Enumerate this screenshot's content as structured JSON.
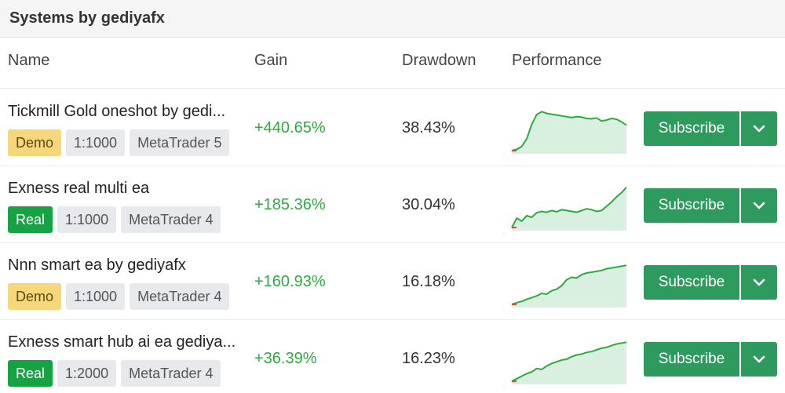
{
  "header": {
    "title": "Systems by gediyafx"
  },
  "columns": {
    "name": "Name",
    "gain": "Gain",
    "drawdown": "Drawdown",
    "performance": "Performance"
  },
  "colors": {
    "gain_green": "#2faa3f",
    "button_green": "#2e9a5e",
    "demo_tag": "#f6d77a",
    "real_tag": "#17a243",
    "spark_line": "#2eaa3e",
    "spark_fill": "#d9efe0"
  },
  "rows": [
    {
      "name": "Tickmill Gold oneshot by gedi...",
      "tags": [
        "Demo",
        "1:1000",
        "MetaTrader 5"
      ],
      "gain": "+440.65%",
      "drawdown": "38.43%",
      "subscribe_label": "Subscribe",
      "dropdown_icon": "chevron-down-icon",
      "sparkline": [
        0,
        3,
        10,
        28,
        62,
        85,
        92,
        88,
        86,
        84,
        82,
        80,
        78,
        80,
        79,
        76,
        75,
        77,
        70,
        72,
        76,
        74,
        68,
        60
      ]
    },
    {
      "name": "Exness real multi ea",
      "tags": [
        "Real",
        "1:1000",
        "MetaTrader 4"
      ],
      "gain": "+185.36%",
      "drawdown": "30.04%",
      "subscribe_label": "Subscribe",
      "dropdown_icon": "chevron-down-icon",
      "sparkline": [
        0,
        22,
        15,
        28,
        24,
        35,
        38,
        36,
        40,
        37,
        42,
        40,
        38,
        36,
        40,
        44,
        42,
        38,
        40,
        50,
        60,
        72,
        82,
        95
      ]
    },
    {
      "name": "Nnn smart ea by gediyafx",
      "tags": [
        "Demo",
        "1:1000",
        "MetaTrader 4"
      ],
      "gain": "+160.93%",
      "drawdown": "16.18%",
      "subscribe_label": "Subscribe",
      "dropdown_icon": "chevron-down-icon",
      "sparkline": [
        0,
        4,
        7,
        12,
        16,
        20,
        26,
        24,
        32,
        36,
        44,
        58,
        64,
        62,
        70,
        74,
        76,
        78,
        80,
        84,
        86,
        88,
        90,
        92
      ]
    },
    {
      "name": "Exness smart hub ai ea gediya...",
      "tags": [
        "Real",
        "1:2000",
        "MetaTrader 4"
      ],
      "gain": "+36.39%",
      "drawdown": "16.23%",
      "subscribe_label": "Subscribe",
      "dropdown_icon": "chevron-down-icon",
      "sparkline": [
        0,
        6,
        12,
        18,
        22,
        30,
        28,
        36,
        42,
        46,
        50,
        52,
        58,
        62,
        64,
        68,
        70,
        74,
        78,
        80,
        84,
        88,
        90,
        92
      ]
    }
  ]
}
